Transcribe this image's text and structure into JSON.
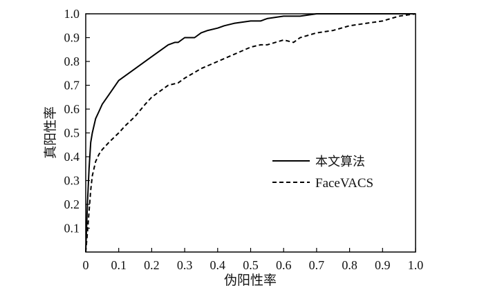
{
  "chart_data": {
    "type": "line",
    "xlabel": "伪阳性率",
    "ylabel": "真阳性率",
    "xlim": [
      0,
      1.0
    ],
    "ylim": [
      0,
      1.0
    ],
    "x_ticks": [
      "0",
      "0.1",
      "0.2",
      "0.3",
      "0.4",
      "0.5",
      "0.6",
      "0.7",
      "0.8",
      "0.9",
      "1.0"
    ],
    "y_ticks": [
      "0.1",
      "0.2",
      "0.3",
      "0.4",
      "0.5",
      "0.6",
      "0.7",
      "0.8",
      "0.9",
      "1.0"
    ],
    "grid": false,
    "legend_position": "center-right",
    "series": [
      {
        "name": "本文算法",
        "style": "solid",
        "color": "#000000",
        "x": [
          0,
          0.005,
          0.01,
          0.015,
          0.02,
          0.03,
          0.04,
          0.05,
          0.07,
          0.1,
          0.15,
          0.2,
          0.25,
          0.27,
          0.28,
          0.3,
          0.32,
          0.33,
          0.35,
          0.37,
          0.4,
          0.42,
          0.45,
          0.5,
          0.53,
          0.55,
          0.6,
          0.65,
          0.7,
          0.75,
          0.8,
          0.9,
          1.0
        ],
        "y": [
          0,
          0.2,
          0.35,
          0.46,
          0.5,
          0.56,
          0.59,
          0.62,
          0.66,
          0.72,
          0.77,
          0.82,
          0.87,
          0.88,
          0.88,
          0.9,
          0.9,
          0.9,
          0.92,
          0.93,
          0.94,
          0.95,
          0.96,
          0.97,
          0.97,
          0.98,
          0.99,
          0.99,
          1.0,
          1.0,
          1.0,
          1.0,
          1.0
        ]
      },
      {
        "name": "FaceVACS",
        "style": "dashed",
        "color": "#000000",
        "x": [
          0,
          0.005,
          0.01,
          0.015,
          0.02,
          0.03,
          0.04,
          0.05,
          0.07,
          0.1,
          0.12,
          0.15,
          0.18,
          0.2,
          0.22,
          0.25,
          0.28,
          0.3,
          0.35,
          0.4,
          0.45,
          0.5,
          0.53,
          0.55,
          0.6,
          0.63,
          0.65,
          0.7,
          0.75,
          0.8,
          0.85,
          0.9,
          0.95,
          1.0
        ],
        "y": [
          0,
          0.08,
          0.17,
          0.26,
          0.32,
          0.38,
          0.41,
          0.43,
          0.46,
          0.5,
          0.53,
          0.57,
          0.62,
          0.65,
          0.67,
          0.7,
          0.71,
          0.73,
          0.77,
          0.8,
          0.83,
          0.86,
          0.87,
          0.87,
          0.89,
          0.88,
          0.9,
          0.92,
          0.93,
          0.95,
          0.96,
          0.97,
          0.99,
          1.0
        ]
      }
    ]
  }
}
